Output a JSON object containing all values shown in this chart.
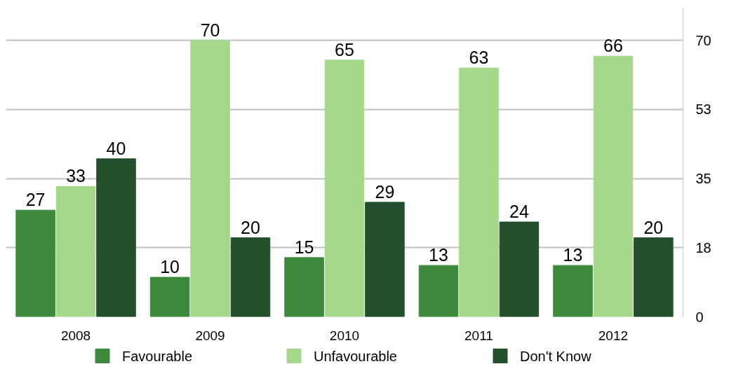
{
  "chart_data": {
    "type": "bar",
    "categories": [
      "2008",
      "2009",
      "2010",
      "2011",
      "2012"
    ],
    "series": [
      {
        "name": "Favourable",
        "color": "#3d8a3d",
        "values": [
          27,
          10,
          15,
          13,
          13
        ]
      },
      {
        "name": "Unfavourable",
        "color": "#a6d88c",
        "values": [
          33,
          70,
          65,
          63,
          66
        ]
      },
      {
        "name": "Don't Know",
        "color": "#244f2c",
        "values": [
          40,
          20,
          29,
          24,
          20
        ]
      }
    ],
    "ylim": [
      0,
      78
    ],
    "yticks": [
      0,
      {
        "value": 17.5,
        "label": "18"
      },
      35,
      {
        "value": 52.5,
        "label": "53"
      },
      70
    ],
    "grid": "y",
    "legend": "bottom",
    "data_labels": true
  }
}
